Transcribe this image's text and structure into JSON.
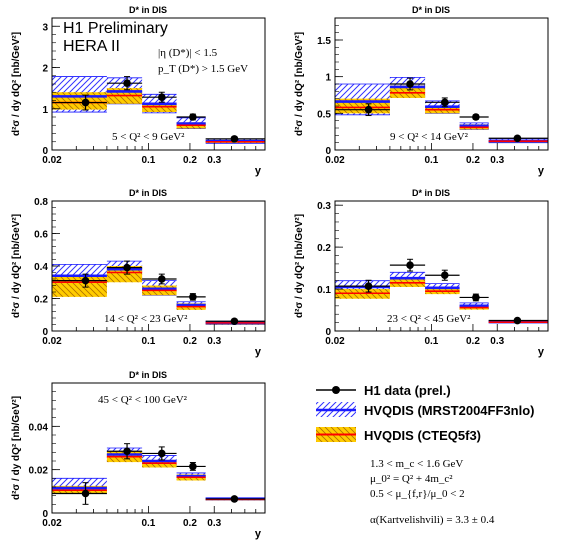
{
  "figure_title": "H1 Preliminary",
  "figure_subtitle": "HERA II",
  "cut_lines": [
    "|η (D*)| < 1.5",
    "p_T (D*) > 1.5 GeV"
  ],
  "legend": {
    "data": "H1 data (prel.)",
    "mrst": "HVQDIS (MRST2004FF3nlo)",
    "cteq": "HVQDIS (CTEQ5f3)",
    "params": [
      "1.3 < m_c < 1.6 GeV",
      "μ_0² = Q² + 4m_c²",
      "0.5 < μ_{f,r}/μ_0 < 2",
      "α(Kartvelishvili) = 3.3 ± 0.4"
    ]
  },
  "colors": {
    "data": "#000000",
    "mrst_line": "#1a1aff",
    "mrst_hatch": "#3333ff",
    "cteq_line": "#ff0000",
    "cteq_band": "#ffcc00",
    "cteq_hatch": "#b07000"
  },
  "chart_data": [
    {
      "type": "bar",
      "title": "D* in DIS",
      "xlabel": "y",
      "ylabel": "d²σ / dy dQ² [nb/GeV²]",
      "q2_range": "5 < Q² < 9 GeV²",
      "x_scale": "log",
      "xlim": [
        0.02,
        0.7
      ],
      "ylim": [
        0,
        3.2
      ],
      "x_tick_labels": [
        "0.02",
        "0.1",
        "0.2",
        "0.3"
      ],
      "y_tick_labels": [
        "0",
        "1",
        "2",
        "3"
      ],
      "bin_edges": [
        0.02,
        0.05,
        0.09,
        0.16,
        0.26,
        0.7
      ],
      "data": {
        "x": [
          0.035,
          0.07,
          0.125,
          0.21,
          0.42
        ],
        "y": [
          1.15,
          1.62,
          1.28,
          0.8,
          0.27
        ],
        "err": [
          0.18,
          0.16,
          0.12,
          0.07,
          0.04
        ]
      },
      "mrst": {
        "central": [
          1.3,
          1.42,
          1.12,
          0.64,
          0.21
        ],
        "low": [
          0.92,
          1.12,
          0.9,
          0.52,
          0.16
        ],
        "high": [
          1.78,
          1.75,
          1.35,
          0.78,
          0.26
        ]
      },
      "cteq": {
        "central": [
          1.15,
          1.32,
          1.05,
          0.6,
          0.2
        ],
        "low": [
          0.98,
          1.12,
          0.92,
          0.52,
          0.17
        ],
        "high": [
          1.4,
          1.5,
          1.15,
          0.67,
          0.23
        ]
      }
    },
    {
      "type": "bar",
      "title": "D* in DIS",
      "xlabel": "y",
      "ylabel": "d²σ / dy dQ² [nb/GeV²]",
      "q2_range": "9 < Q² < 14 GeV²",
      "x_scale": "log",
      "xlim": [
        0.02,
        0.7
      ],
      "ylim": [
        0,
        1.8
      ],
      "x_tick_labels": [
        "0.02",
        "0.1",
        "0.2",
        "0.3"
      ],
      "y_tick_labels": [
        "0",
        "0.5",
        "1",
        "1.5"
      ],
      "bin_edges": [
        0.02,
        0.05,
        0.09,
        0.16,
        0.26,
        0.7
      ],
      "data": {
        "x": [
          0.035,
          0.07,
          0.125,
          0.21,
          0.42
        ],
        "y": [
          0.55,
          0.9,
          0.65,
          0.45,
          0.16
        ],
        "err": [
          0.08,
          0.08,
          0.06,
          0.03,
          0.02
        ]
      },
      "mrst": {
        "central": [
          0.66,
          0.86,
          0.59,
          0.33,
          0.12
        ],
        "low": [
          0.48,
          0.72,
          0.5,
          0.28,
          0.1
        ],
        "high": [
          0.9,
          0.99,
          0.67,
          0.37,
          0.15
        ]
      },
      "cteq": {
        "central": [
          0.58,
          0.78,
          0.55,
          0.31,
          0.12
        ],
        "low": [
          0.5,
          0.71,
          0.5,
          0.28,
          0.1
        ],
        "high": [
          0.7,
          0.88,
          0.6,
          0.35,
          0.13
        ]
      }
    },
    {
      "type": "bar",
      "title": "D* in DIS",
      "xlabel": "y",
      "ylabel": "d²σ / dy dQ² [nb/GeV²]",
      "q2_range": "14 < Q² < 23 GeV²",
      "x_scale": "log",
      "xlim": [
        0.02,
        0.7
      ],
      "ylim": [
        0,
        0.8
      ],
      "x_tick_labels": [
        "0.02",
        "0.1",
        "0.2",
        "0.3"
      ],
      "y_tick_labels": [
        "0",
        "0.2",
        "0.4",
        "0.6",
        "0.8"
      ],
      "bin_edges": [
        0.02,
        0.05,
        0.09,
        0.16,
        0.26,
        0.7
      ],
      "data": {
        "x": [
          0.035,
          0.07,
          0.125,
          0.21,
          0.42
        ],
        "y": [
          0.31,
          0.39,
          0.32,
          0.21,
          0.06
        ],
        "err": [
          0.04,
          0.04,
          0.03,
          0.02,
          0.01
        ]
      },
      "mrst": {
        "central": [
          0.34,
          0.38,
          0.26,
          0.16,
          0.05
        ],
        "low": [
          0.24,
          0.32,
          0.22,
          0.14,
          0.04
        ],
        "high": [
          0.41,
          0.43,
          0.31,
          0.18,
          0.06
        ]
      },
      "cteq": {
        "central": [
          0.3,
          0.36,
          0.25,
          0.15,
          0.05
        ],
        "low": [
          0.21,
          0.3,
          0.22,
          0.13,
          0.04
        ],
        "high": [
          0.34,
          0.4,
          0.28,
          0.17,
          0.055
        ]
      }
    },
    {
      "type": "bar",
      "title": "D* in DIS",
      "xlabel": "y",
      "ylabel": "d²σ / dy dQ² [nb/GeV²]",
      "q2_range": "23 < Q² < 45 GeV²",
      "x_scale": "log",
      "xlim": [
        0.02,
        0.7
      ],
      "ylim": [
        0,
        0.31
      ],
      "x_tick_labels": [
        "0.02",
        "0.1",
        "0.2",
        "0.3"
      ],
      "y_tick_labels": [
        "0",
        "0.1",
        "0.2",
        "0.3"
      ],
      "bin_edges": [
        0.02,
        0.05,
        0.09,
        0.16,
        0.26,
        0.7
      ],
      "data": {
        "x": [
          0.035,
          0.07,
          0.125,
          0.21,
          0.42
        ],
        "y": [
          0.107,
          0.157,
          0.133,
          0.08,
          0.025
        ],
        "err": [
          0.014,
          0.014,
          0.012,
          0.008,
          0.003
        ]
      },
      "mrst": {
        "central": [
          0.105,
          0.126,
          0.103,
          0.06,
          0.022
        ],
        "low": [
          0.085,
          0.112,
          0.093,
          0.054,
          0.019
        ],
        "high": [
          0.12,
          0.14,
          0.113,
          0.067,
          0.025
        ]
      },
      "cteq": {
        "central": [
          0.09,
          0.115,
          0.095,
          0.056,
          0.021
        ],
        "low": [
          0.077,
          0.105,
          0.088,
          0.051,
          0.019
        ],
        "high": [
          0.1,
          0.125,
          0.103,
          0.061,
          0.023
        ]
      }
    },
    {
      "type": "bar",
      "title": "D* in DIS",
      "xlabel": "y",
      "ylabel": "d²σ / dy dQ² [nb/GeV²]",
      "q2_range": "45 < Q² < 100 GeV²",
      "x_scale": "log",
      "xlim": [
        0.02,
        0.7
      ],
      "ylim": [
        0,
        0.06
      ],
      "x_tick_labels": [
        "0.02",
        "0.1",
        "0.2",
        "0.3"
      ],
      "y_tick_labels": [
        "0",
        "0.02",
        "0.04"
      ],
      "bin_edges": [
        0.02,
        0.05,
        0.09,
        0.16,
        0.26,
        0.7
      ],
      "data": {
        "x": [
          0.035,
          0.07,
          0.125,
          0.21,
          0.42
        ],
        "y": [
          0.009,
          0.0285,
          0.0275,
          0.0215,
          0.0065
        ],
        "err": [
          0.005,
          0.0035,
          0.003,
          0.0018,
          0.0008
        ]
      },
      "mrst": {
        "central": [
          0.0115,
          0.027,
          0.024,
          0.017,
          0.0065
        ],
        "low": [
          0.009,
          0.024,
          0.0215,
          0.0155,
          0.006
        ],
        "high": [
          0.016,
          0.03,
          0.0265,
          0.0185,
          0.007
        ]
      },
      "cteq": {
        "central": [
          0.0105,
          0.026,
          0.023,
          0.0165,
          0.0063
        ],
        "low": [
          0.009,
          0.0235,
          0.021,
          0.015,
          0.0058
        ],
        "high": [
          0.0125,
          0.0285,
          0.0245,
          0.0178,
          0.0068
        ]
      }
    }
  ]
}
